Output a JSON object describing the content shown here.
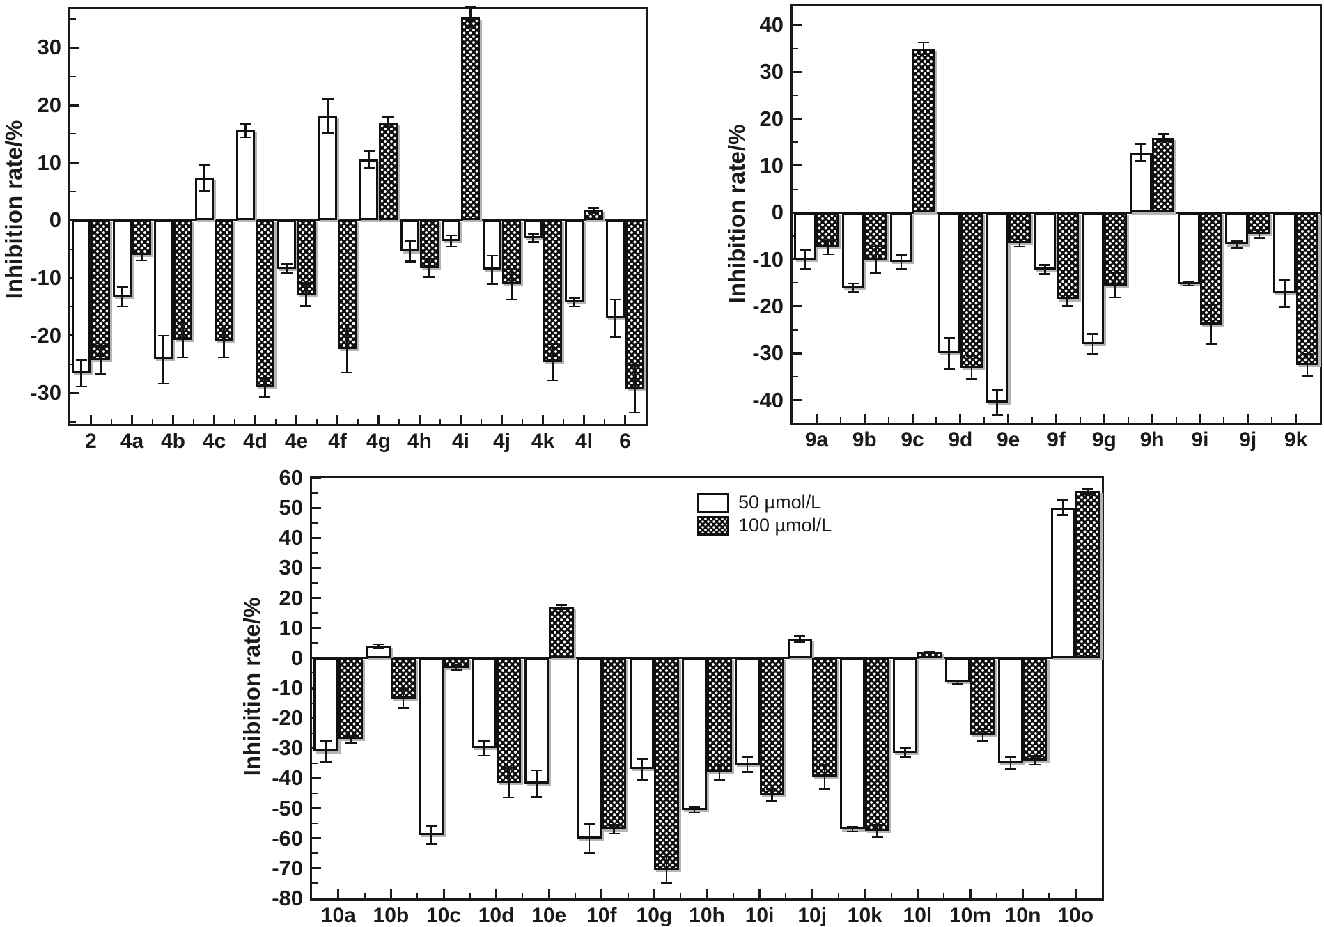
{
  "legend": {
    "items": [
      {
        "label": "50 µmol/L"
      },
      {
        "label": "100 µmol/L"
      }
    ]
  },
  "chart_data": [
    {
      "id": "chart1",
      "type": "bar",
      "title": "",
      "xlabel": "",
      "ylabel": "Inhibition rate/%",
      "grid": false,
      "legend_position": "none",
      "categories": [
        "2",
        "4a",
        "4b",
        "4c",
        "4d",
        "4e",
        "4f",
        "4g",
        "4h",
        "4i",
        "4j",
        "4k",
        "4l",
        "6"
      ],
      "series": [
        {
          "name": "50 µmol/L",
          "values": [
            -26.6,
            -13.3,
            -24.2,
            7.4,
            15.6,
            -8.4,
            18.2,
            10.6,
            -5.4,
            -3.6,
            -8.6,
            -3.1,
            -14.2,
            -17.0
          ],
          "errors": [
            2.3,
            1.7,
            4.2,
            2.3,
            1.2,
            0.8,
            3.0,
            1.5,
            1.8,
            1.0,
            2.5,
            0.7,
            0.8,
            3.3
          ]
        },
        {
          "name": "100 µmol/L",
          "values": [
            -24.3,
            -6.0,
            -20.8,
            -21.0,
            -29.0,
            -12.9,
            -22.3,
            17.0,
            -8.3,
            35.3,
            -11.1,
            -24.6,
            1.7,
            -29.2
          ],
          "errors": [
            2.4,
            1.0,
            3.0,
            2.8,
            1.7,
            2.0,
            4.2,
            0.9,
            1.6,
            1.8,
            2.7,
            3.2,
            0.5,
            4.2
          ]
        }
      ],
      "ylim": [
        -35.4,
        36.7
      ],
      "yticks": [
        30,
        20,
        10,
        0,
        -10,
        -20,
        -30
      ]
    },
    {
      "id": "chart2",
      "type": "bar",
      "title": "",
      "xlabel": "",
      "ylabel": "Inhibition rate/%",
      "grid": false,
      "legend_position": "none",
      "categories": [
        "9a",
        "9b",
        "9c",
        "9d",
        "9e",
        "9f",
        "9g",
        "9h",
        "9i",
        "9j",
        "9k"
      ],
      "series": [
        {
          "name": "50 µmol/L",
          "values": [
            -10.0,
            -16.0,
            -10.5,
            -30.0,
            -40.5,
            -12.1,
            -28.0,
            12.8,
            -15.2,
            -6.8,
            -17.2
          ],
          "errors": [
            2.0,
            0.9,
            1.5,
            3.3,
            2.7,
            1.0,
            2.2,
            1.9,
            0.4,
            0.7,
            2.9
          ]
        },
        {
          "name": "100 µmol/L",
          "values": [
            -7.4,
            -10.0,
            35.0,
            -33.0,
            -6.5,
            -18.5,
            -15.5,
            16.0,
            -23.8,
            -4.6,
            -32.5
          ],
          "errors": [
            1.5,
            2.8,
            1.3,
            2.5,
            0.8,
            1.5,
            2.6,
            0.8,
            4.2,
            0.9,
            2.4
          ]
        }
      ],
      "ylim": [
        -44.8,
        44.0
      ],
      "yticks": [
        40,
        30,
        20,
        10,
        0,
        -10,
        -20,
        -30,
        -40
      ]
    },
    {
      "id": "chart3",
      "type": "bar",
      "title": "",
      "xlabel": "",
      "ylabel": "Inhibition rate/%",
      "grid": false,
      "legend_position": "inside-top-center",
      "categories": [
        "10a",
        "10b",
        "10c",
        "10d",
        "10e",
        "10f",
        "10g",
        "10h",
        "10i",
        "10j",
        "10k",
        "10l",
        "10m",
        "10n",
        "10o"
      ],
      "series": [
        {
          "name": "50 µmol/L",
          "values": [
            -31.0,
            4.0,
            -59.0,
            -30.0,
            -41.8,
            -60.0,
            -37.0,
            -50.5,
            -35.5,
            6.3,
            -57.0,
            -31.5,
            -8.0,
            -35.0,
            50.0
          ],
          "errors": [
            3.5,
            0.7,
            3.0,
            2.5,
            4.5,
            5.0,
            3.5,
            1.0,
            2.5,
            1.0,
            0.8,
            1.5,
            0.5,
            2.0,
            2.5
          ]
        },
        {
          "name": "100 µmol/L",
          "values": [
            -27.0,
            -13.5,
            -3.2,
            -41.5,
            17.0,
            -57.0,
            -70.5,
            -38.0,
            -45.5,
            -39.5,
            -57.5,
            2.0,
            -25.5,
            -34.0,
            55.5
          ],
          "errors": [
            1.2,
            3.2,
            1.0,
            5.0,
            0.8,
            1.5,
            4.5,
            2.5,
            2.0,
            4.0,
            2.0,
            0.4,
            2.0,
            1.5,
            1.0
          ]
        }
      ],
      "ylim": [
        -80,
        60
      ],
      "yticks": [
        60,
        50,
        40,
        30,
        20,
        10,
        0,
        -10,
        -20,
        -30,
        -40,
        -50,
        -60,
        -70,
        -80
      ]
    }
  ]
}
